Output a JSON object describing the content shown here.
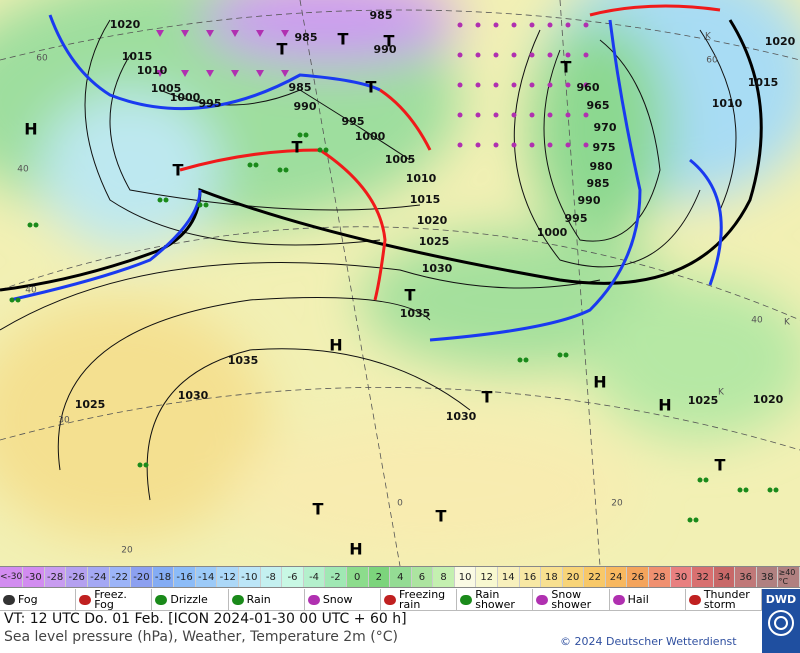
{
  "map": {
    "isobar_labels": [
      1020,
      985,
      985,
      990,
      1015,
      1010,
      1005,
      1000,
      995,
      985,
      990,
      995,
      1000,
      1005,
      1010,
      1015,
      1020,
      1025,
      1030,
      1035,
      1035,
      1030,
      1025,
      1030,
      960,
      965,
      970,
      975,
      980,
      985,
      990,
      995,
      1000,
      1010,
      1015,
      1020,
      1025,
      1020
    ],
    "pressure_centers": [
      "H",
      "T",
      "T",
      "T",
      "T",
      "T",
      "T",
      "T",
      "H",
      "H",
      "H",
      "T",
      "T",
      "T",
      "H",
      "T",
      "T"
    ],
    "grid_labels": [
      "60",
      "40",
      "40",
      "30",
      "20",
      "0",
      "20",
      "40",
      "60",
      "K",
      "K",
      "K"
    ]
  },
  "temperature_scale": {
    "low_label": "<-30",
    "values": [
      -30,
      -28,
      -26,
      -24,
      -22,
      -20,
      -18,
      -16,
      -14,
      -12,
      -10,
      -8,
      -6,
      -4,
      -2,
      0,
      2,
      4,
      6,
      8,
      10,
      12,
      14,
      16,
      18,
      20,
      22,
      24,
      26,
      28,
      30,
      32,
      34,
      36,
      38
    ],
    "colors": [
      "#d28cf0",
      "#c89cf0",
      "#b4a0f0",
      "#a4a8f4",
      "#9cb4f8",
      "#8ca0f0",
      "#84acf4",
      "#8cbcf8",
      "#9ccaf8",
      "#acd8f8",
      "#bce6f8",
      "#c4f0f0",
      "#c8f8e4",
      "#b4f0cc",
      "#a0e8b4",
      "#8cdc8c",
      "#7cd47c",
      "#94dc94",
      "#ace4a0",
      "#c4f0b0",
      "#fafae4",
      "#f8f8d0",
      "#f8f0bc",
      "#f8e8a4",
      "#f8e090",
      "#f8d478",
      "#f8c868",
      "#f8b860",
      "#f4a45c",
      "#f09070",
      "#e88080",
      "#d87070",
      "#c86868",
      "#c07878",
      "#b08080"
    ],
    "high_label": "≥40 °C"
  },
  "legend": [
    "Fog",
    "Freez. Fog",
    "Drizzle",
    "Rain",
    "Snow",
    "Freezing rain",
    "Rain shower",
    "Snow shower",
    "Hail",
    "Thunder storm"
  ],
  "footer": {
    "valid_time": "VT: 12 UTC Do.   01 Feb. [ICON 2024-01-30  00 UTC + 60 h]",
    "description": "Sea level pressure (hPa), Weather, Temperature 2m (°C)",
    "copyright": "© 2024 Deutscher Wetterdienst",
    "logo": "DWD"
  }
}
